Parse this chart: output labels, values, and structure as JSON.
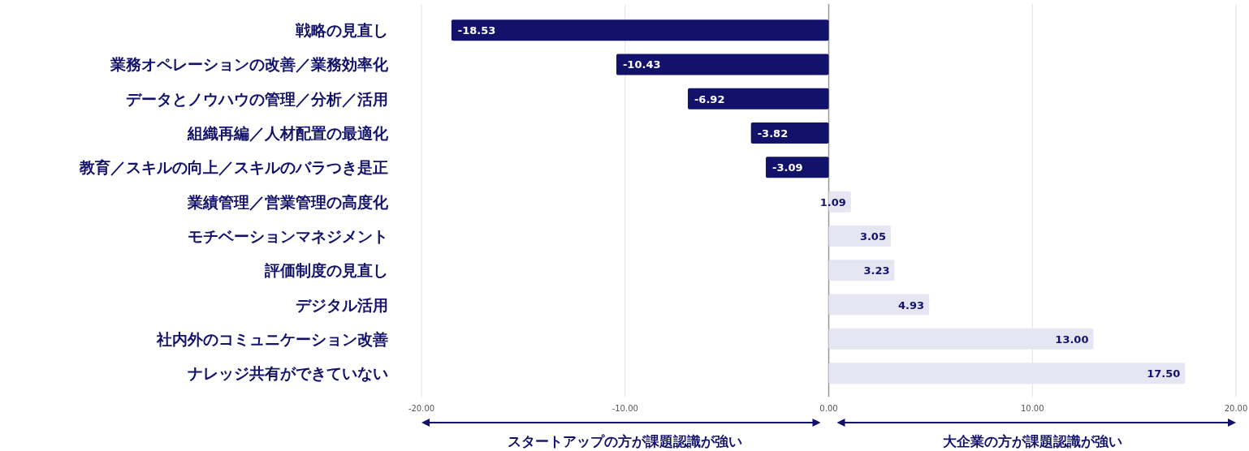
{
  "chart_data": {
    "type": "bar",
    "orientation": "horizontal",
    "categories": [
      "戦略の見直し",
      "業務オペレーションの改善／業務効率化",
      "データとノウハウの管理／分析／活用",
      "組織再編／人材配置の最適化",
      "教育／スキルの向上／スキルのバラつき是正",
      "業績管理／営業管理の高度化",
      "モチベーションマネジメント",
      "評価制度の見直し",
      "デジタル活用",
      "社内外のコミュニケーション改善",
      "ナレッジ共有ができていない"
    ],
    "values": [
      -18.53,
      -10.43,
      -6.92,
      -3.82,
      -3.09,
      1.09,
      3.05,
      3.23,
      4.93,
      13.0,
      17.5
    ],
    "value_labels": [
      "-18.53",
      "-10.43",
      "-6.92",
      "-3.82",
      "-3.09",
      "1.09",
      "3.05",
      "3.23",
      "4.93",
      "13.00",
      "17.50"
    ],
    "colors": [
      "#12126b",
      "#12126b",
      "#12126b",
      "#12126b",
      "#12126b",
      "#e6e6f2",
      "#e6e6f2",
      "#e6e6f2",
      "#e6e6f2",
      "#e6e6f2",
      "#e6e6f2"
    ],
    "xlim": [
      -20,
      20
    ],
    "xticks": [
      {
        "value": -20,
        "label": "-20.00"
      },
      {
        "value": -10,
        "label": "-10.00"
      },
      {
        "value": 0,
        "label": "0.00"
      },
      {
        "value": 10,
        "label": "10.00"
      },
      {
        "value": 20,
        "label": "20.00"
      }
    ],
    "grid": "x",
    "annotations": [
      "スタートアップの方が課題認識が強い",
      "大企業の方が課題認識が強い"
    ]
  }
}
